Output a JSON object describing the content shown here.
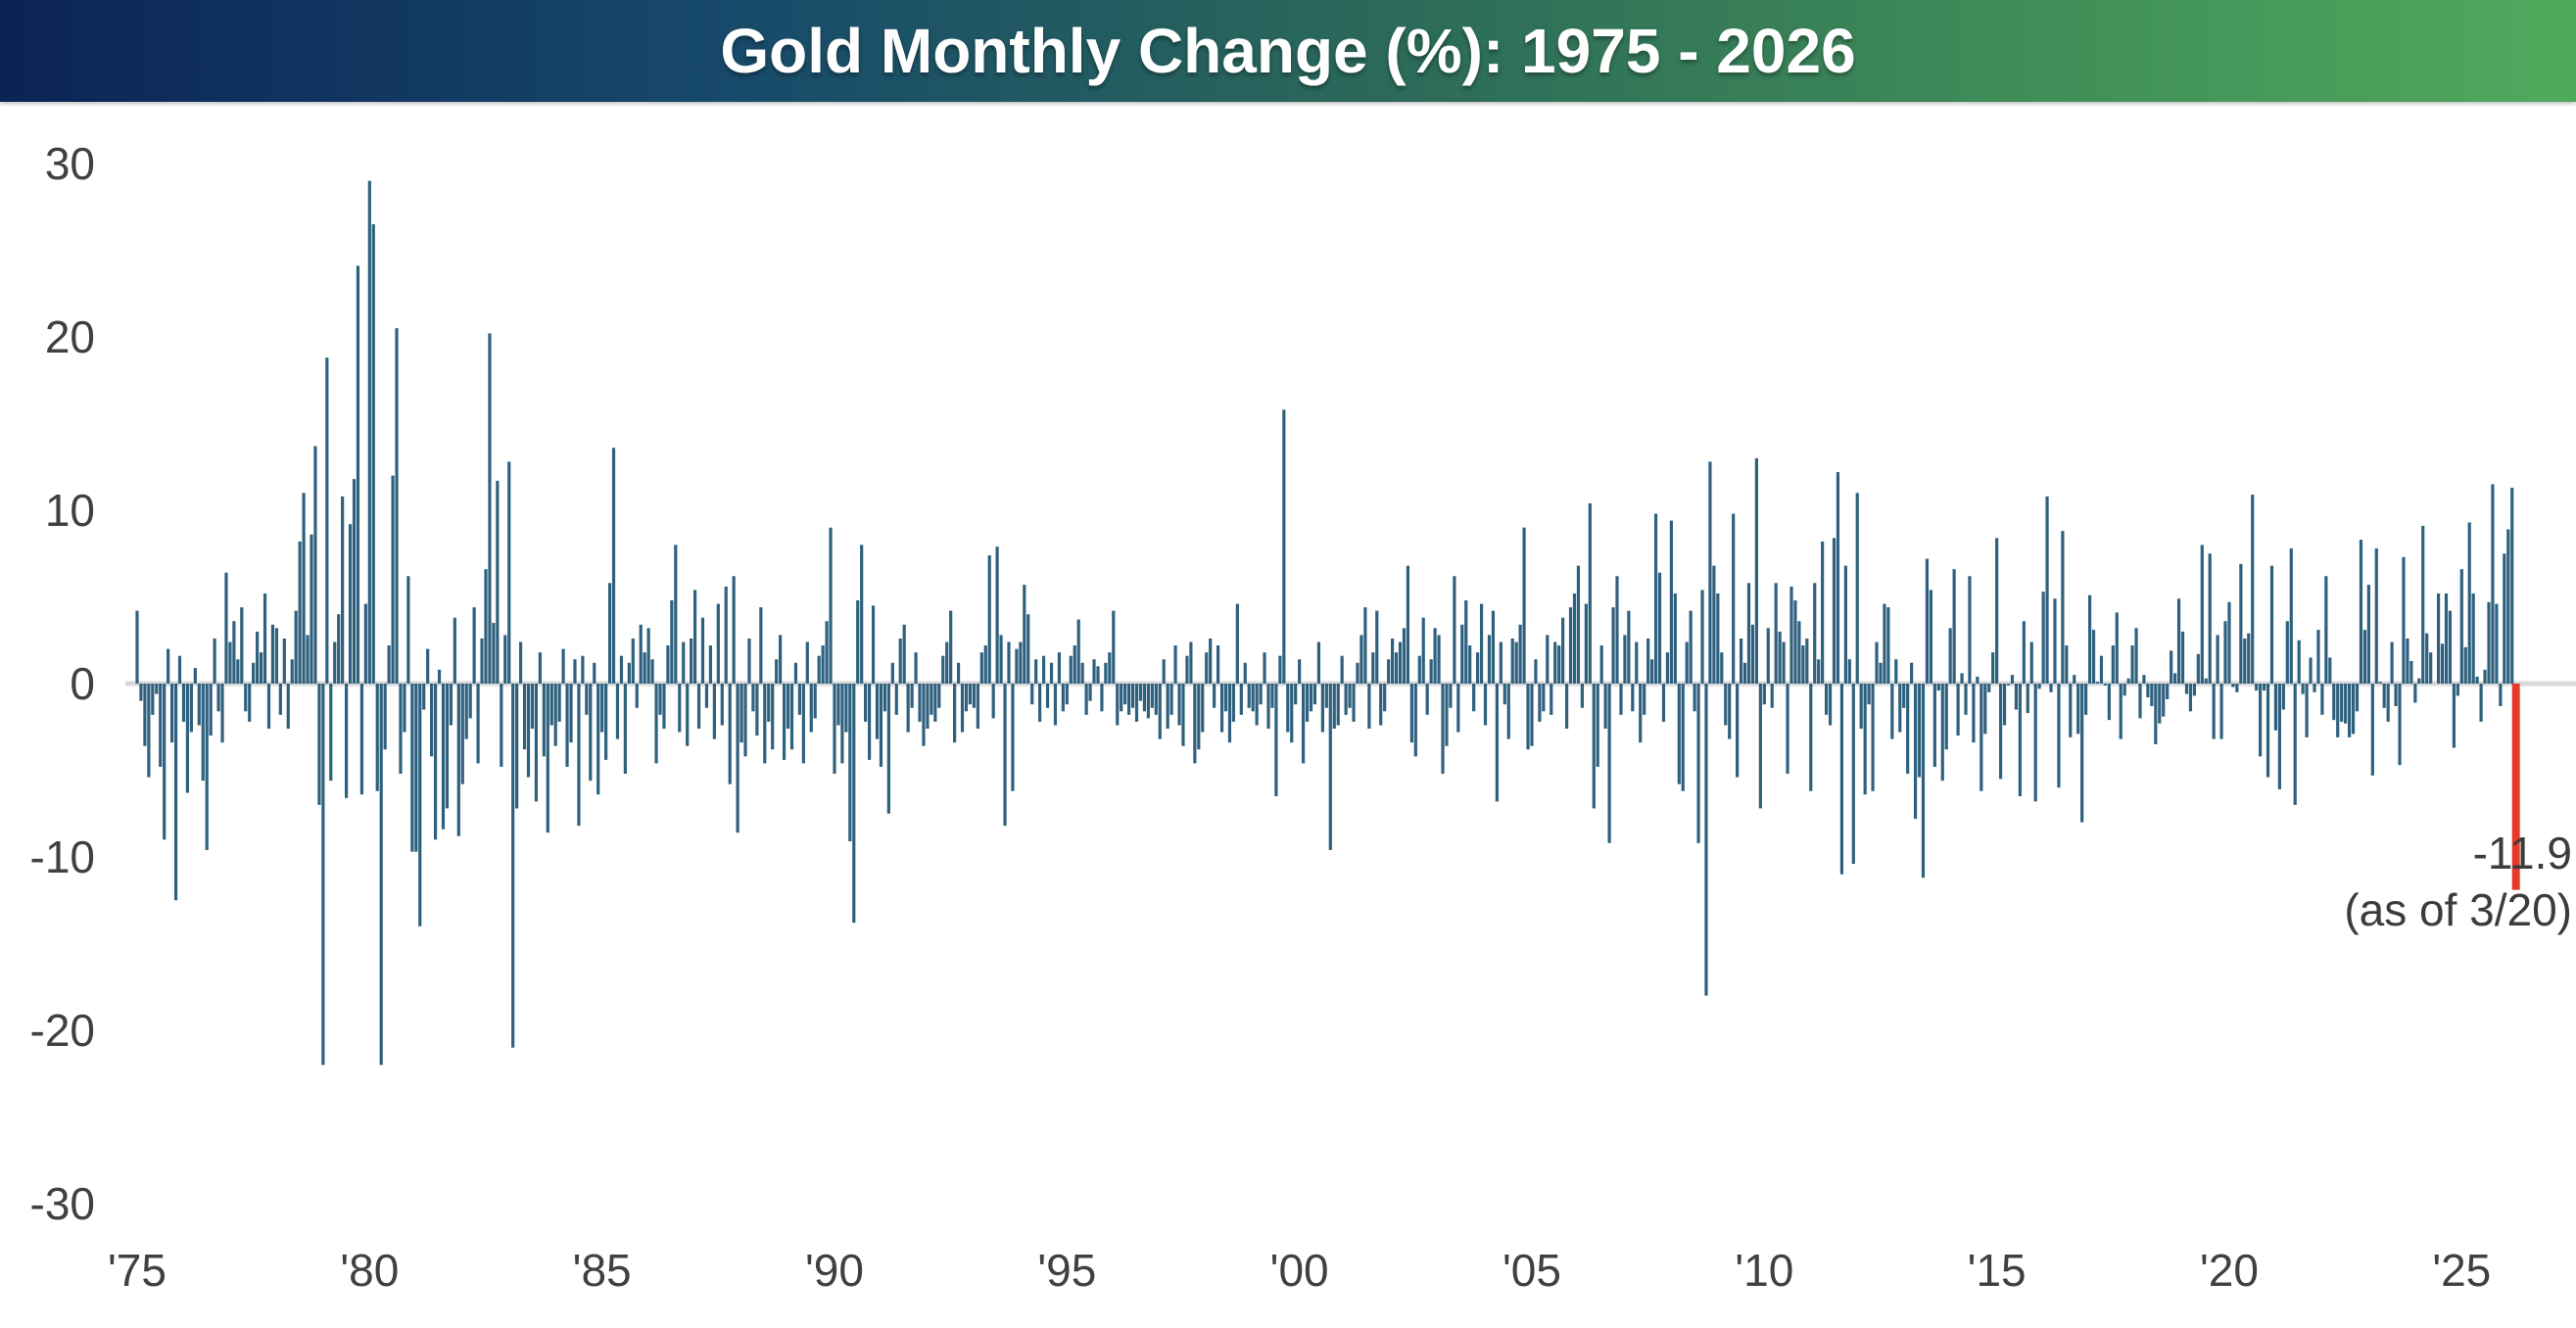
{
  "header": {
    "title": "Gold Monthly Change (%): 1975 - 2026",
    "gradient_left": "#0b2357",
    "gradient_mid": "#2c6b59",
    "gradient_right": "#50aa5c",
    "text_color": "#ffffff"
  },
  "chart_data": {
    "type": "bar",
    "title": "Gold Monthly Change (%): 1975 - 2026",
    "series_name": "Gold monthly change (%)",
    "bar_color": "#2f617f",
    "highlight_color": "#e8392b",
    "baseline_color": "#d9d9d9",
    "axis_text_color": "#404040",
    "grid": "off",
    "legend": "none",
    "y_axis": {
      "ticks": [
        30,
        20,
        10,
        0,
        -10,
        -20,
        -30
      ],
      "range": [
        -30,
        30
      ]
    },
    "x_axis": {
      "ticks": [
        {
          "label": "'75",
          "year": 1975
        },
        {
          "label": "'80",
          "year": 1980
        },
        {
          "label": "'85",
          "year": 1985
        },
        {
          "label": "'90",
          "year": 1990
        },
        {
          "label": "'95",
          "year": 1995
        },
        {
          "label": "'00",
          "year": 2000
        },
        {
          "label": "'05",
          "year": 2005
        },
        {
          "label": "'10",
          "year": 2010
        },
        {
          "label": "'15",
          "year": 2015
        },
        {
          "label": "'20",
          "year": 2020
        },
        {
          "label": "'25",
          "year": 2025
        }
      ]
    },
    "start_year": 1975,
    "values_by_year": {
      "1975": [
        4.2,
        -1.0,
        -3.6,
        -5.4,
        -1.8,
        -0.6,
        -4.8,
        -9.0,
        2.0,
        -3.4,
        -12.5,
        1.6
      ],
      "1976": [
        -2.2,
        -6.3,
        -2.8,
        0.9,
        -2.4,
        -5.6,
        -9.6,
        -3.0,
        2.6,
        -1.6,
        -3.4,
        6.4
      ],
      "1977": [
        2.4,
        3.6,
        1.4,
        4.4,
        -1.6,
        -2.2,
        1.2,
        3.0,
        1.8,
        5.2,
        -2.6,
        3.4
      ],
      "1978": [
        3.2,
        -1.8,
        2.6,
        -2.6,
        1.4,
        4.2,
        8.2,
        11.0,
        2.8,
        8.6,
        13.7,
        -7.0
      ],
      "1979": [
        -22.0,
        18.8,
        -5.6,
        2.4,
        4.0,
        10.8,
        -6.6,
        9.2,
        11.8,
        24.1,
        -6.4,
        4.6
      ],
      "1980": [
        29.0,
        26.5,
        -6.2,
        -22.0,
        -3.8,
        2.2,
        12.0,
        20.5,
        -5.2,
        -2.8,
        6.2,
        -9.7
      ],
      "1981": [
        -9.7,
        -14.0,
        -1.5,
        2.0,
        -4.2,
        -9.0,
        0.8,
        -8.4,
        -7.2,
        -2.4,
        3.8,
        -8.8
      ],
      "1982": [
        -5.8,
        -3.2,
        -2.0,
        4.4,
        -4.6,
        2.6,
        6.6,
        20.2,
        3.5,
        11.7,
        -4.8,
        2.8
      ],
      "1983": [
        12.8,
        -21.0,
        -7.2,
        2.4,
        -3.8,
        -5.4,
        -2.6,
        -6.8,
        1.8,
        -4.2,
        -8.6,
        -2.4
      ],
      "1984": [
        -3.6,
        -2.2,
        2.0,
        -4.8,
        -3.4,
        1.4,
        -8.2,
        1.6,
        -1.8,
        -5.6,
        1.2,
        -6.4
      ],
      "1985": [
        -2.8,
        -4.4,
        5.8,
        13.6,
        -3.2,
        1.6,
        -5.2,
        1.2,
        2.6,
        -1.4,
        3.4,
        1.8
      ],
      "1986": [
        3.2,
        1.4,
        -4.6,
        -1.8,
        -2.6,
        2.2,
        4.8,
        8.0,
        -2.8,
        2.4,
        -3.6,
        2.6
      ],
      "1987": [
        5.4,
        -2.6,
        3.8,
        -1.4,
        2.2,
        -3.2,
        4.6,
        -2.4,
        5.6,
        -5.8,
        6.2,
        -8.6
      ],
      "1988": [
        -3.4,
        -4.2,
        2.6,
        -1.6,
        -3.0,
        4.4,
        -4.6,
        -2.2,
        -3.8,
        1.4,
        2.8,
        -4.4
      ],
      "1989": [
        -2.6,
        -3.8,
        1.2,
        -1.8,
        -4.6,
        2.4,
        -2.8,
        -2.0,
        1.6,
        2.2,
        3.6,
        9.0
      ],
      "1990": [
        -5.2,
        -2.4,
        -4.6,
        -2.8,
        -9.1,
        -13.8,
        4.8,
        8.0,
        -2.2,
        -4.4,
        4.5,
        -3.2
      ],
      "1991": [
        -4.8,
        -1.6,
        -7.5,
        1.2,
        -1.8,
        2.6,
        3.4,
        -2.8,
        -1.4,
        1.8,
        -2.2,
        -3.6
      ],
      "1992": [
        -2.6,
        -1.8,
        -2.2,
        -1.4,
        1.6,
        2.4,
        4.2,
        -3.4,
        1.2,
        -2.8,
        -1.6,
        -1.2
      ],
      "1993": [
        -1.4,
        -2.6,
        1.8,
        2.2,
        7.4,
        -2.0,
        7.9,
        2.8,
        -8.2,
        2.4,
        -6.2,
        2.0
      ],
      "1994": [
        2.4,
        5.7,
        4.0,
        -1.2,
        1.4,
        -2.2,
        1.6,
        -1.4,
        1.2,
        -2.4,
        1.8,
        -1.6
      ],
      "1995": [
        -1.2,
        1.6,
        2.2,
        3.7,
        1.2,
        -1.8,
        -1.0,
        1.4,
        1.0,
        -1.6,
        1.2,
        1.8
      ],
      "1996": [
        4.2,
        -2.4,
        -1.6,
        -1.2,
        -1.8,
        -1.4,
        -2.2,
        -1.0,
        -1.6,
        -2.0,
        -1.4,
        -1.8
      ],
      "1997": [
        -3.2,
        1.4,
        -2.6,
        -1.8,
        2.2,
        -2.4,
        -3.6,
        1.6,
        2.4,
        -4.6,
        -3.8,
        -2.8
      ],
      "1998": [
        1.8,
        2.6,
        -1.4,
        2.2,
        -2.8,
        -1.6,
        -3.4,
        -2.2,
        4.6,
        -1.8,
        1.2,
        -1.4
      ],
      "1999": [
        -1.6,
        -2.4,
        -1.2,
        1.8,
        -2.6,
        -1.4,
        -6.5,
        1.6,
        15.8,
        -2.8,
        -3.4,
        -1.2
      ],
      "2000": [
        1.4,
        -4.6,
        -2.2,
        -1.6,
        -1.2,
        2.4,
        -2.8,
        -1.4,
        -9.6,
        -2.6,
        -2.4,
        1.6
      ],
      "2001": [
        -1.8,
        -1.4,
        -2.2,
        1.2,
        2.8,
        4.4,
        -2.6,
        1.8,
        4.2,
        -2.4,
        -1.6,
        1.4
      ],
      "2002": [
        2.6,
        1.8,
        2.4,
        3.2,
        6.8,
        -3.4,
        -4.2,
        1.6,
        3.8,
        -1.8,
        1.4,
        3.2
      ],
      "2003": [
        2.8,
        -5.2,
        -3.6,
        -1.4,
        6.2,
        -2.8,
        3.4,
        4.8,
        2.2,
        -1.6,
        1.8,
        4.6
      ],
      "2004": [
        -2.4,
        2.8,
        4.2,
        -6.8,
        2.4,
        -1.2,
        -3.2,
        2.6,
        2.4,
        3.4,
        9.0,
        -3.8
      ],
      "2005": [
        -3.6,
        1.4,
        -2.2,
        -1.6,
        2.8,
        -1.8,
        2.4,
        2.2,
        3.8,
        -2.6,
        4.4,
        5.2
      ],
      "2006": [
        6.8,
        -1.4,
        4.6,
        10.4,
        -7.2,
        -4.8,
        2.2,
        -2.6,
        -9.2,
        4.4,
        6.2,
        -1.8
      ],
      "2007": [
        2.8,
        4.2,
        -1.6,
        2.4,
        -3.4,
        -1.8,
        2.6,
        1.4,
        9.8,
        6.4,
        -2.2,
        1.8
      ],
      "2008": [
        9.4,
        5.2,
        -5.8,
        -6.2,
        2.4,
        4.2,
        -1.6,
        -9.2,
        5.4,
        -18.0,
        12.8,
        6.8
      ],
      "2009": [
        5.2,
        1.8,
        -2.4,
        -3.2,
        9.8,
        -5.4,
        2.6,
        1.2,
        5.8,
        3.4,
        13.0,
        -7.2
      ],
      "2010": [
        -1.2,
        3.2,
        -1.4,
        5.8,
        3.0,
        2.4,
        -5.2,
        5.6,
        4.8,
        3.6,
        2.2,
        2.6
      ],
      "2011": [
        -6.2,
        5.8,
        1.4,
        8.2,
        -1.8,
        -2.4,
        8.4,
        12.2,
        -11.0,
        6.8,
        1.4,
        -10.4
      ],
      "2012": [
        11.0,
        -2.6,
        -6.4,
        -1.2,
        -6.2,
        2.4,
        1.2,
        4.6,
        4.4,
        -3.2,
        1.4,
        -2.8
      ],
      "2013": [
        -1.4,
        -5.2,
        1.2,
        -7.8,
        -5.4,
        -11.2,
        7.2,
        5.4,
        -4.8,
        -0.4,
        -5.6,
        -3.8
      ],
      "2014": [
        3.2,
        6.6,
        -3.0,
        0.6,
        -1.8,
        6.2,
        -3.4,
        0.4,
        -6.2,
        -2.9,
        -0.5,
        1.8
      ],
      "2015": [
        8.4,
        -5.5,
        -2.4,
        -0.1,
        0.5,
        -1.5,
        -6.5,
        3.6,
        -1.7,
        2.4,
        -6.8,
        -0.3
      ],
      "2016": [
        5.3,
        10.8,
        -0.5,
        4.9,
        -6.0,
        8.8,
        2.2,
        -3.1,
        0.5,
        -2.9,
        -8.0,
        -1.8
      ],
      "2017": [
        5.1,
        3.1,
        0.1,
        1.6,
        -0.1,
        -2.1,
        2.2,
        4.1,
        -3.2,
        -0.7,
        0.3,
        2.2
      ],
      "2018": [
        3.2,
        -2.0,
        0.5,
        -0.8,
        -1.3,
        -3.5,
        -2.3,
        -1.9,
        -0.9,
        1.9,
        0.6,
        4.9
      ],
      "2019": [
        3.0,
        -0.6,
        -1.6,
        -0.7,
        1.7,
        8.0,
        0.3,
        7.5,
        -3.2,
        2.8,
        -3.2,
        3.6
      ],
      "2020": [
        4.7,
        -0.2,
        -0.5,
        6.9,
        2.6,
        2.9,
        10.9,
        -0.4,
        -4.2,
        -0.4,
        -5.4,
        6.8
      ],
      "2021": [
        -2.7,
        -6.1,
        -1.5,
        3.6,
        7.8,
        -7.0,
        2.5,
        -0.6,
        -3.1,
        1.5,
        -0.5,
        3.1
      ],
      "2022": [
        -1.8,
        6.2,
        1.5,
        -2.1,
        -3.1,
        -2.2,
        -2.3,
        -3.1,
        -2.9,
        -1.6,
        8.3,
        3.1
      ],
      "2023": [
        5.7,
        -5.3,
        7.8,
        0.1,
        -1.4,
        -2.2,
        2.4,
        -1.3,
        -4.7,
        7.3,
        2.6,
        1.3
      ],
      "2024": [
        -1.1,
        0.3,
        9.1,
        2.9,
        1.8,
        0.0,
        5.2,
        2.3,
        5.2,
        4.2,
        -3.7,
        -0.7
      ],
      "2025": [
        6.6,
        2.1,
        9.3,
        5.2,
        0.4,
        -2.2,
        0.8,
        4.7,
        11.5,
        4.6,
        -1.3,
        7.5
      ],
      "2026": [
        8.9,
        11.3,
        -11.9
      ]
    },
    "highlight_last_bar": {
      "year": 2026,
      "month": 3,
      "value": -11.9,
      "color": "#e8392b"
    },
    "annotation": {
      "line1": "-11.9",
      "line2": "(as of 3/20)"
    }
  }
}
